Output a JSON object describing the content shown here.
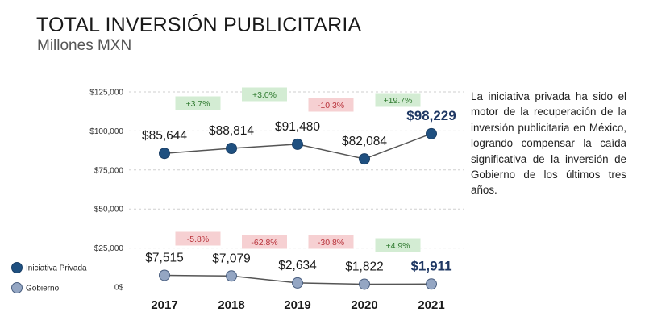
{
  "header": {
    "title": "TOTAL INVERSIÓN PUBLICITARIA",
    "subtitle": "Millones MXN"
  },
  "annotation": "La iniciativa privada ha sido el motor de la recuperación de la inversión publicitaria en México, logrando compensar la caída significativa de la inversión de Gobierno de los últimos tres años.",
  "colors": {
    "privada": "#1f5080",
    "gobierno": "#94a6c3",
    "positive_bg": "#d3ecd3",
    "positive_text": "#2f7a2f",
    "negative_bg": "#f6d0d2",
    "negative_text": "#b8323a",
    "highlight_label": "#1f3864"
  },
  "chart_data": {
    "type": "line",
    "categories": [
      "2017",
      "2018",
      "2019",
      "2020",
      "2021"
    ],
    "ylim": [
      0,
      125000
    ],
    "y_ticks": [
      0,
      25000,
      50000,
      75000,
      100000,
      125000
    ],
    "y_tick_labels": [
      "0$",
      "$25,000",
      "$50,000",
      "$75,000",
      "$100,000",
      "$125,000"
    ],
    "grid": "horizontal-dashed",
    "legend": "bottom-left",
    "series": [
      {
        "name": "Iniciativa Privada",
        "values": [
          85644,
          88814,
          91480,
          82084,
          98229
        ],
        "value_labels": [
          "$85,644",
          "$88,814",
          "$91,480",
          "$82,084",
          "$98,229"
        ],
        "change_labels": [
          "+3.7%",
          "+3.0%",
          "-10.3%",
          "+19.7%"
        ]
      },
      {
        "name": "Gobierno",
        "values": [
          7515,
          7079,
          2634,
          1822,
          1911
        ],
        "value_labels": [
          "$7,515",
          "$7,079",
          "$2,634",
          "$1,822",
          "$1,911"
        ],
        "change_labels": [
          "-5.8%",
          "-62.8%",
          "-30.8%",
          "+4.9%"
        ]
      }
    ]
  }
}
